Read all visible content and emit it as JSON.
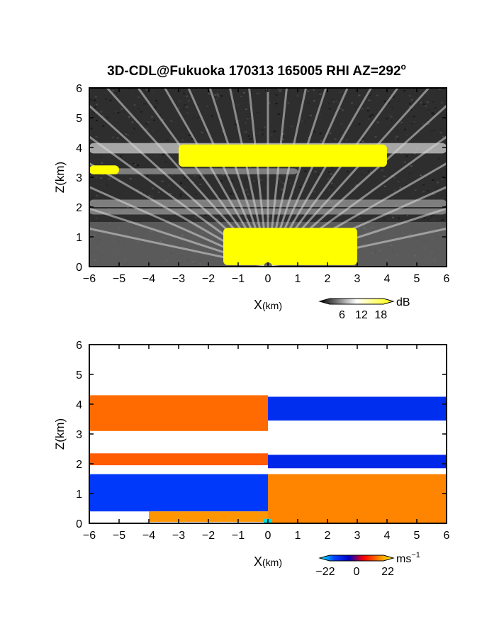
{
  "title": {
    "text": "3D-CDL@Fukuoka 170313 165005 RHI AZ=292",
    "degree_symbol": "o"
  },
  "chart_data": [
    {
      "type": "heatmap",
      "field": "intensity",
      "xlabel_main": "X",
      "xlabel_unit": "(km)",
      "ylabel": "Z(km)",
      "xlim": [
        -6,
        6
      ],
      "ylim": [
        0,
        6
      ],
      "x_ticks": [
        "−6",
        "−5",
        "−4",
        "−3",
        "−2",
        "−1",
        "0",
        "1",
        "2",
        "3",
        "4",
        "5",
        "6"
      ],
      "y_ticks": [
        "0",
        "1",
        "2",
        "3",
        "4",
        "5",
        "6"
      ],
      "colorbar": {
        "unit": "dB",
        "ticks": [
          "6",
          "12",
          "18"
        ],
        "range": [
          0,
          21
        ],
        "colors": [
          "#000000",
          "#ffffff",
          "#ffff00"
        ]
      },
      "background_color": "#2e2e2e",
      "layers": [
        {
          "x": [
            -6,
            6
          ],
          "z": [
            3.8,
            4.15
          ],
          "level": "mid-bright"
        },
        {
          "x": [
            -6,
            1
          ],
          "z": [
            3.1,
            3.3
          ],
          "level": "mid"
        },
        {
          "x": [
            -6,
            6
          ],
          "z": [
            2.0,
            2.25
          ],
          "level": "mid"
        },
        {
          "x": [
            -6,
            6
          ],
          "z": [
            1.75,
            1.95
          ],
          "level": "mid"
        },
        {
          "x": [
            -6,
            6
          ],
          "z": [
            0.0,
            1.5
          ],
          "level": "fan"
        },
        {
          "x": [
            -3,
            4
          ],
          "z": [
            3.35,
            4.1
          ],
          "level": "saturated"
        },
        {
          "x": [
            -6,
            -5
          ],
          "z": [
            3.1,
            3.4
          ],
          "level": "saturated"
        },
        {
          "x": [
            -1.5,
            3
          ],
          "z": [
            0.05,
            1.3
          ],
          "level": "saturated"
        }
      ]
    },
    {
      "type": "heatmap",
      "field": "radial_velocity",
      "xlabel_main": "X",
      "xlabel_unit": "(km)",
      "ylabel": "Z(km)",
      "xlim": [
        -6,
        6
      ],
      "ylim": [
        0,
        6
      ],
      "x_ticks": [
        "−6",
        "−5",
        "−4",
        "−3",
        "−2",
        "−1",
        "0",
        "1",
        "2",
        "3",
        "4",
        "5",
        "6"
      ],
      "y_ticks": [
        "0",
        "1",
        "2",
        "3",
        "4",
        "5",
        "6"
      ],
      "colorbar": {
        "unit": "ms",
        "unit_exp": "−1",
        "ticks": [
          "−22",
          "0",
          "22"
        ],
        "range": [
          -24,
          24
        ],
        "colors": [
          "#00ffff",
          "#0040ff",
          "#0000c0",
          "#ff0000",
          "#ff8000",
          "#ffff00"
        ]
      },
      "background_color": "#ffffff",
      "layers": [
        {
          "x": [
            -6,
            0
          ],
          "z": [
            3.1,
            4.3
          ],
          "velocity": 14
        },
        {
          "x": [
            0,
            6
          ],
          "z": [
            3.45,
            4.25
          ],
          "velocity": -12
        },
        {
          "x": [
            -6,
            0
          ],
          "z": [
            1.95,
            2.35
          ],
          "velocity": 12
        },
        {
          "x": [
            0,
            6
          ],
          "z": [
            1.85,
            2.3
          ],
          "velocity": -10
        },
        {
          "x": [
            -6,
            0
          ],
          "z": [
            0.4,
            1.65
          ],
          "velocity": -15
        },
        {
          "x": [
            0,
            6
          ],
          "z": [
            0.0,
            1.65
          ],
          "velocity": 17
        },
        {
          "x": [
            -4,
            0
          ],
          "z": [
            0.05,
            0.4
          ],
          "velocity": 18
        }
      ]
    }
  ]
}
